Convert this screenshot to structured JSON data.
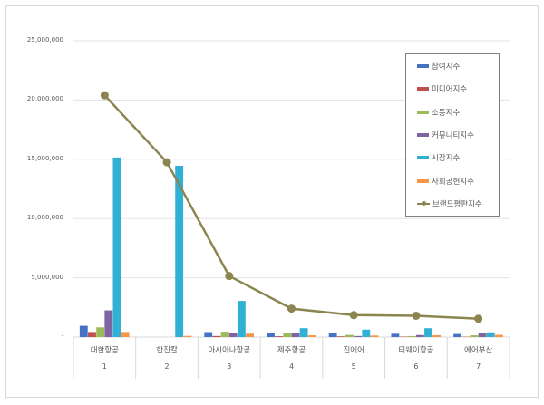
{
  "chart_data": {
    "type": "bar+line",
    "title": "",
    "xlabel": "",
    "ylabel": "",
    "ylim": [
      0,
      25000000
    ],
    "yticks": [
      "-",
      "5,000,000",
      "10,000,000",
      "15,000,000",
      "20,000,000",
      "25,000,000"
    ],
    "grid": true,
    "legend_position": "right",
    "categories": [
      "대한항공",
      "한진칼",
      "아시아나항공",
      "제주항공",
      "진에어",
      "티웨이항공",
      "에어부산"
    ],
    "category_ranks": [
      "1",
      "2",
      "3",
      "4",
      "5",
      "6",
      "7"
    ],
    "series": [
      {
        "name": "참여지수",
        "type": "bar",
        "color": "#4472c4",
        "values": [
          950000,
          0,
          420000,
          350000,
          330000,
          280000,
          260000
        ]
      },
      {
        "name": "미디어지수",
        "type": "bar",
        "color": "#c0504d",
        "values": [
          430000,
          0,
          90000,
          70000,
          60000,
          40000,
          30000
        ]
      },
      {
        "name": "소통지수",
        "type": "bar",
        "color": "#9bbb59",
        "values": [
          820000,
          0,
          450000,
          380000,
          180000,
          80000,
          150000
        ]
      },
      {
        "name": "커뮤니티지수",
        "type": "bar",
        "color": "#8064a2",
        "values": [
          2250000,
          0,
          370000,
          350000,
          90000,
          170000,
          330000
        ]
      },
      {
        "name": "시장지수",
        "type": "bar",
        "color": "#31b0d5",
        "values": [
          15150000,
          14450000,
          3050000,
          750000,
          630000,
          750000,
          400000
        ]
      },
      {
        "name": "사회공헌지수",
        "type": "bar",
        "color": "#f79646",
        "values": [
          430000,
          100000,
          290000,
          150000,
          130000,
          160000,
          190000
        ]
      },
      {
        "name": "브랜드평판지수",
        "type": "line",
        "color": "#8c8550",
        "values": [
          20400000,
          14750000,
          5150000,
          2400000,
          1850000,
          1800000,
          1550000
        ]
      }
    ]
  }
}
